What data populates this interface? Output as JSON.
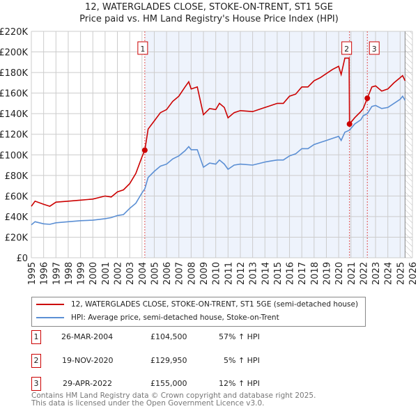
{
  "title_line1": "12, WATERGLADES CLOSE, STOKE-ON-TRENT, ST1 5GE",
  "title_line2": "Price paid vs. HM Land Registry's House Price Index (HPI)",
  "chart_data": {
    "type": "line",
    "title": "12, WATERGLADES CLOSE, STOKE-ON-TRENT, ST1 5GE — Price paid vs. HM Land Registry's House Price Index (HPI)",
    "xlim": [
      1995,
      2026
    ],
    "ylim": [
      0,
      220000
    ],
    "ytick_labels": [
      "£0",
      "£20K",
      "£40K",
      "£60K",
      "£80K",
      "£100K",
      "£120K",
      "£140K",
      "£160K",
      "£180K",
      "£200K",
      "£220K"
    ],
    "xtick_labels": [
      "1995",
      "1996",
      "1997",
      "1998",
      "1999",
      "2000",
      "2001",
      "2002",
      "2003",
      "2004",
      "2005",
      "2006",
      "2007",
      "2008",
      "2009",
      "2010",
      "2011",
      "2012",
      "2013",
      "2014",
      "2015",
      "2016",
      "2017",
      "2018",
      "2019",
      "2020",
      "2021",
      "2022",
      "2023",
      "2024",
      "2025",
      "2026"
    ],
    "grid": true,
    "legend_placement": "below",
    "series": [
      {
        "name": "12, WATERGLADES CLOSE, STOKE-ON-TRENT, ST1 5GE (semi-detached house)",
        "color": "#cc0000",
        "x": [
          1995,
          1995.3,
          1996,
          1996.5,
          1997,
          1998,
          1999,
          2000,
          2001,
          2001.5,
          2002,
          2002.5,
          2003,
          2003.5,
          2004,
          2004.23,
          2004.5,
          2005,
          2005.5,
          2006,
          2006.5,
          2007,
          2007.5,
          2007.8,
          2008,
          2008.5,
          2009,
          2009.5,
          2010,
          2010.3,
          2010.7,
          2011,
          2011.5,
          2012,
          2013,
          2014,
          2014.5,
          2015,
          2015.5,
          2016,
          2016.5,
          2017,
          2017.5,
          2018,
          2018.5,
          2019,
          2019.5,
          2020,
          2020.2,
          2020.5,
          2020.85,
          2020.88,
          2021.3,
          2021.8,
          2022,
          2022.33,
          2022.7,
          2023,
          2023.5,
          2024,
          2024.5,
          2025,
          2025.2,
          2025.4
        ],
        "y": [
          50000,
          55000,
          52000,
          50000,
          54000,
          55000,
          56000,
          57000,
          60000,
          59000,
          64000,
          66000,
          72000,
          82000,
          98000,
          104500,
          125000,
          133000,
          141000,
          144000,
          152000,
          157000,
          166000,
          171000,
          164000,
          166000,
          139000,
          145000,
          144000,
          150000,
          146000,
          136000,
          141000,
          143000,
          142000,
          146000,
          148000,
          150000,
          150000,
          157000,
          159000,
          166000,
          166000,
          172000,
          175000,
          179000,
          183000,
          186000,
          178000,
          194000,
          194000,
          129950,
          136000,
          142000,
          145000,
          155000,
          166000,
          167000,
          162000,
          164000,
          170000,
          175000,
          177000,
          172000
        ]
      },
      {
        "name": "HPI: Average price, semi-detached house, Stoke-on-Trent",
        "color": "#5b8fd4",
        "x": [
          1995,
          1995.3,
          1996,
          1996.5,
          1997,
          1998,
          1999,
          2000,
          2001,
          2001.5,
          2002,
          2002.5,
          2003,
          2003.5,
          2004,
          2004.23,
          2004.5,
          2005,
          2005.5,
          2006,
          2006.5,
          2007,
          2007.5,
          2007.8,
          2008,
          2008.5,
          2009,
          2009.5,
          2010,
          2010.3,
          2010.7,
          2011,
          2011.5,
          2012,
          2013,
          2014,
          2014.5,
          2015,
          2015.5,
          2016,
          2016.5,
          2017,
          2017.5,
          2018,
          2018.5,
          2019,
          2019.5,
          2020,
          2020.2,
          2020.5,
          2020.88,
          2021.3,
          2021.8,
          2022,
          2022.33,
          2022.7,
          2023,
          2023.5,
          2024,
          2024.5,
          2025,
          2025.2,
          2025.4
        ],
        "y": [
          32000,
          35000,
          33000,
          32500,
          34000,
          35000,
          36000,
          36500,
          38000,
          39000,
          41000,
          42000,
          48000,
          53000,
          63000,
          67000,
          78000,
          84000,
          89000,
          91000,
          96000,
          99000,
          104000,
          108000,
          105000,
          105000,
          88000,
          92000,
          91000,
          95000,
          91000,
          86000,
          90000,
          91000,
          90000,
          93000,
          94000,
          95000,
          95000,
          99000,
          101000,
          106000,
          106000,
          110000,
          112000,
          114000,
          116000,
          118000,
          114000,
          122000,
          124000,
          130000,
          134000,
          138000,
          140000,
          147000,
          148000,
          145000,
          146000,
          150000,
          154000,
          157000,
          153000
        ]
      }
    ],
    "annotations": [
      {
        "label": "1",
        "x": 2004.23,
        "y": 104500
      },
      {
        "label": "2",
        "x": 2020.88,
        "y": 129950
      },
      {
        "label": "3",
        "x": 2022.33,
        "y": 155000
      }
    ],
    "shaded_region": [
      2004.23,
      2025.4
    ],
    "hatched_after": 2025.4
  },
  "legend": [
    "12, WATERGLADES CLOSE, STOKE-ON-TRENT, ST1 5GE (semi-detached house)",
    "HPI: Average price, semi-detached house, Stoke-on-Trent"
  ],
  "transactions": [
    {
      "num": "1",
      "date": "26-MAR-2004",
      "price": "£104,500",
      "hpi": "57% ↑ HPI"
    },
    {
      "num": "2",
      "date": "19-NOV-2020",
      "price": "£129,950",
      "hpi": "5% ↑ HPI"
    },
    {
      "num": "3",
      "date": "29-APR-2022",
      "price": "£155,000",
      "hpi": "12% ↑ HPI"
    }
  ],
  "footer_line1": "Contains HM Land Registry data © Crown copyright and database right 2025.",
  "footer_line2": "This data is licensed under the Open Government Licence v3.0."
}
